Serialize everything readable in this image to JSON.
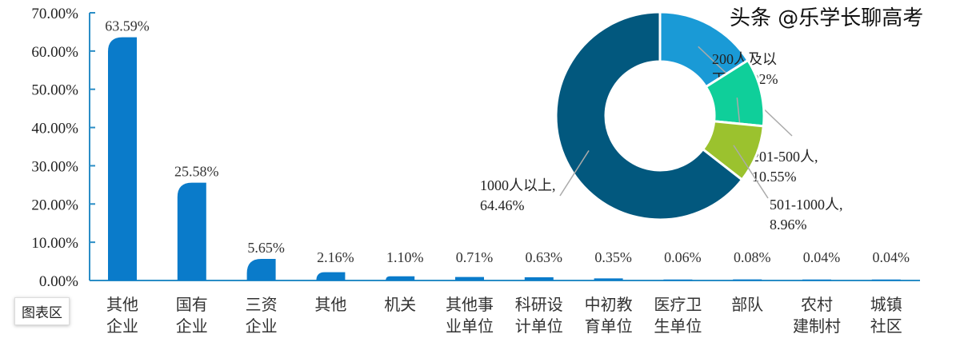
{
  "tooltip": "图表区",
  "watermark": "头条 @乐学长聊高考",
  "colors": {
    "bar": "#0a7bca",
    "axis": "#2a8dc6"
  },
  "chart_data": [
    {
      "type": "bar",
      "ylim": [
        0,
        70
      ],
      "yticks": [
        "0.00%",
        "10.00%",
        "20.00%",
        "30.00%",
        "40.00%",
        "50.00%",
        "60.00%",
        "70.00%"
      ],
      "categories": [
        "其他\n企业",
        "国有\n企业",
        "三资\n企业",
        "其他",
        "机关",
        "其他事\n业单位",
        "科研设\n计单位",
        "中初教\n育单位",
        "医疗卫\n生单位",
        "部队",
        "农村\n建制村",
        "城镇\n社区"
      ],
      "values": [
        63.59,
        25.58,
        5.65,
        2.16,
        1.1,
        0.71,
        0.63,
        0.35,
        0.06,
        0.08,
        0.04,
        0.04
      ],
      "labels": [
        "63.59%",
        "25.58%",
        "5.65%",
        "2.16%",
        "1.10%",
        "0.71%",
        "0.63%",
        "0.35%",
        "0.06%",
        "0.08%",
        "0.04%",
        "0.04%"
      ]
    },
    {
      "type": "pie",
      "donut": true,
      "slices": [
        {
          "name": "200人及以下",
          "value": 16.02,
          "label": [
            "200人及以",
            "下, 16.02%"
          ],
          "color": "#1a9ad6"
        },
        {
          "name": "201-500人",
          "value": 10.55,
          "label": [
            "201-500人,",
            "10.55%"
          ],
          "color": "#0fcf9a"
        },
        {
          "name": "501-1000人",
          "value": 8.96,
          "label": [
            "501-1000人,",
            "8.96%"
          ],
          "color": "#9bc22e"
        },
        {
          "name": "1000人以上",
          "value": 64.46,
          "label": [
            "1000人以上,",
            "64.46%"
          ],
          "color": "#02587e"
        }
      ]
    }
  ]
}
